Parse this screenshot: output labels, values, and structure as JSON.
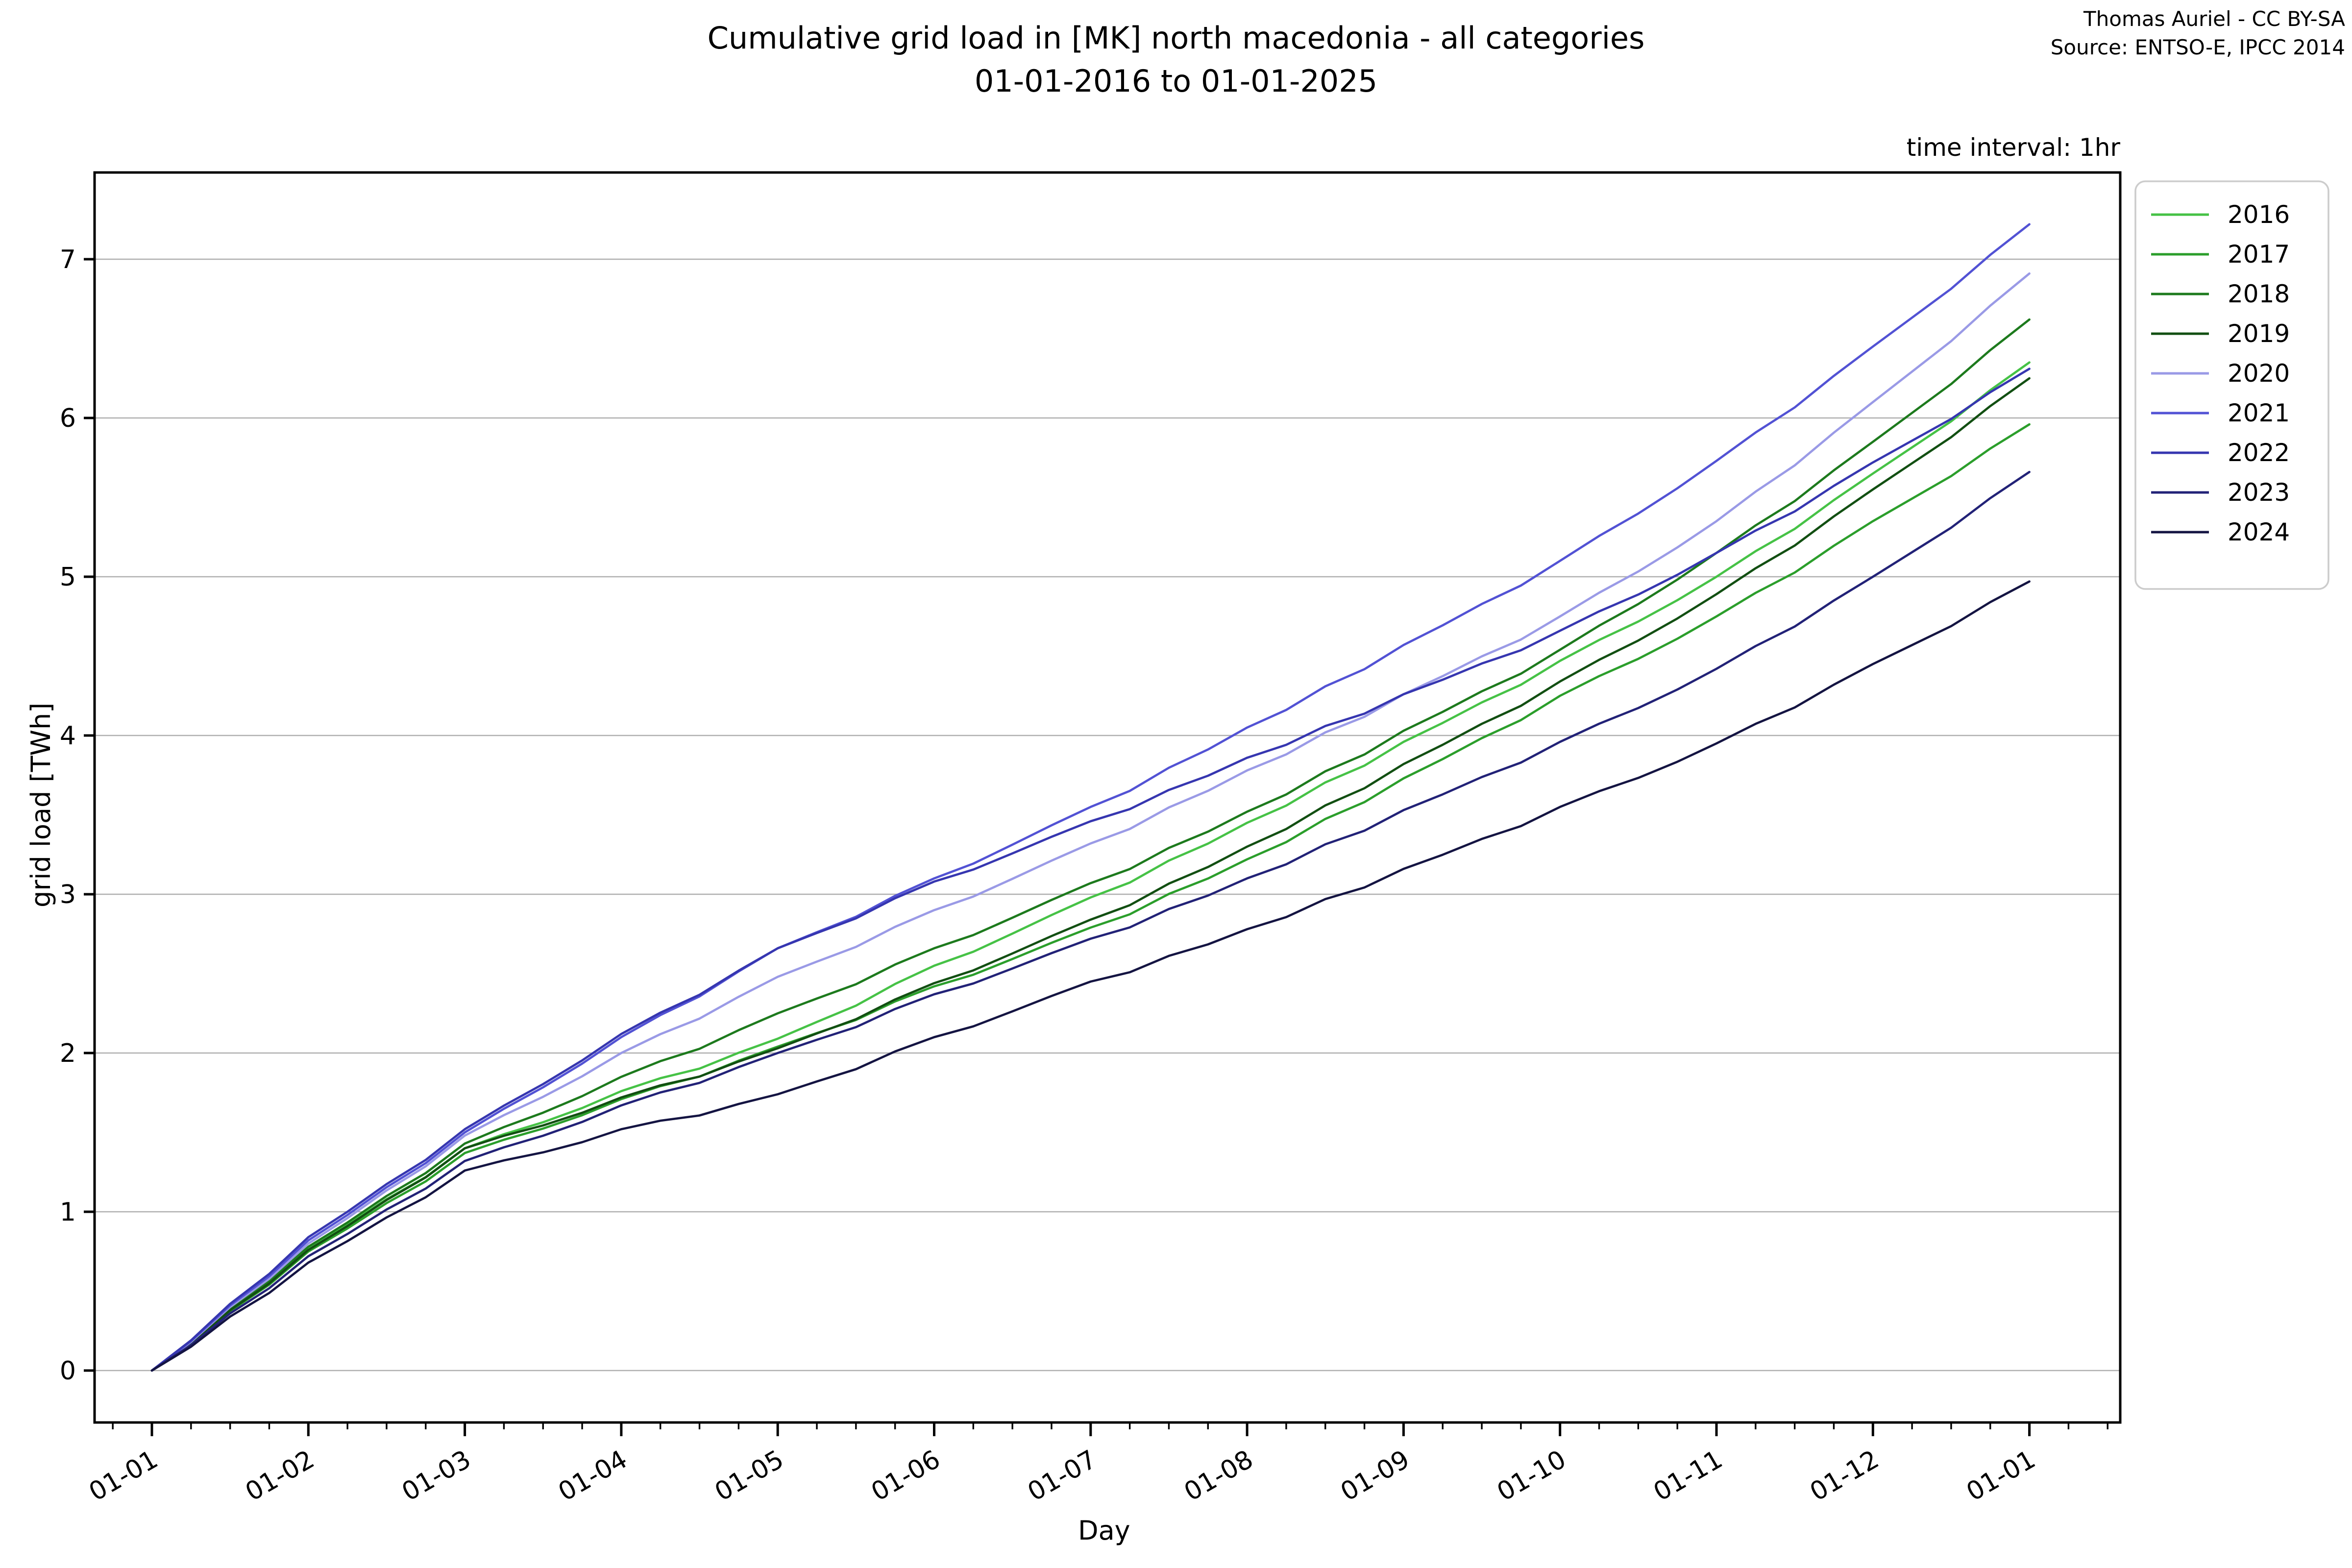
{
  "title": {
    "line1": "Cumulative grid load in [MK] north macedonia - all categories",
    "line2": "01-01-2016 to 01-01-2025"
  },
  "attribution": {
    "line1": "Thomas Auriel - CC BY-SA",
    "line2": "Source: ENTSO-E, IPCC 2014"
  },
  "annotation": "time interval: 1hr",
  "chart_data": {
    "type": "line",
    "title": "Cumulative grid load in [MK] north macedonia - all categories 01-01-2016 to 01-01-2025",
    "xlabel": "Day",
    "ylabel": "grid load [TWh]",
    "x_tick_labels": [
      "01-01",
      "01-02",
      "01-03",
      "01-04",
      "01-05",
      "01-06",
      "01-07",
      "01-08",
      "01-09",
      "01-10",
      "01-11",
      "01-12",
      "01-01"
    ],
    "y_ticks": [
      0,
      1,
      2,
      3,
      4,
      5,
      6,
      7
    ],
    "ylim": [
      -0.33,
      7.55
    ],
    "xlim_months": [
      -0.37,
      12.58
    ],
    "grid": "horizontal-only",
    "legend_position": "upper-right-outside",
    "axis_color": "#000000",
    "grid_color": "#b0b0b0",
    "series": [
      {
        "name": "2016",
        "color": "#46c246",
        "values": [
          0,
          0.77,
          1.4,
          1.76,
          2.09,
          2.55,
          2.98,
          3.45,
          3.96,
          4.47,
          5.0,
          5.65,
          6.35
        ]
      },
      {
        "name": "2017",
        "color": "#2b9e2b",
        "values": [
          0,
          0.75,
          1.37,
          1.71,
          2.04,
          2.42,
          2.79,
          3.22,
          3.73,
          4.25,
          4.75,
          5.35,
          5.96
        ]
      },
      {
        "name": "2018",
        "color": "#1d7a1d",
        "values": [
          0,
          0.78,
          1.43,
          1.85,
          2.25,
          2.66,
          3.07,
          3.52,
          4.03,
          4.54,
          5.15,
          5.85,
          6.62
        ]
      },
      {
        "name": "2019",
        "color": "#124f12",
        "values": [
          0,
          0.76,
          1.4,
          1.72,
          2.03,
          2.44,
          2.84,
          3.3,
          3.82,
          4.34,
          4.89,
          5.55,
          6.25
        ]
      },
      {
        "name": "2020",
        "color": "#9a9ae6",
        "values": [
          0,
          0.8,
          1.48,
          2.0,
          2.48,
          2.9,
          3.32,
          3.78,
          4.26,
          4.75,
          5.35,
          6.1,
          6.91
        ]
      },
      {
        "name": "2021",
        "color": "#5252d4",
        "values": [
          0,
          0.82,
          1.5,
          2.1,
          2.66,
          3.1,
          3.55,
          4.05,
          4.57,
          5.1,
          5.73,
          6.45,
          7.22
        ]
      },
      {
        "name": "2022",
        "color": "#3636b0",
        "values": [
          0,
          0.84,
          1.52,
          2.12,
          2.66,
          3.08,
          3.46,
          3.86,
          4.26,
          4.66,
          5.15,
          5.72,
          6.31
        ]
      },
      {
        "name": "2023",
        "color": "#222277",
        "values": [
          0,
          0.72,
          1.32,
          1.67,
          2.0,
          2.37,
          2.72,
          3.1,
          3.53,
          3.96,
          4.42,
          5.0,
          5.66
        ]
      },
      {
        "name": "2024",
        "color": "#141442",
        "values": [
          0,
          0.68,
          1.26,
          1.52,
          1.74,
          2.1,
          2.45,
          2.78,
          3.16,
          3.55,
          3.95,
          4.45,
          4.97
        ]
      }
    ]
  }
}
